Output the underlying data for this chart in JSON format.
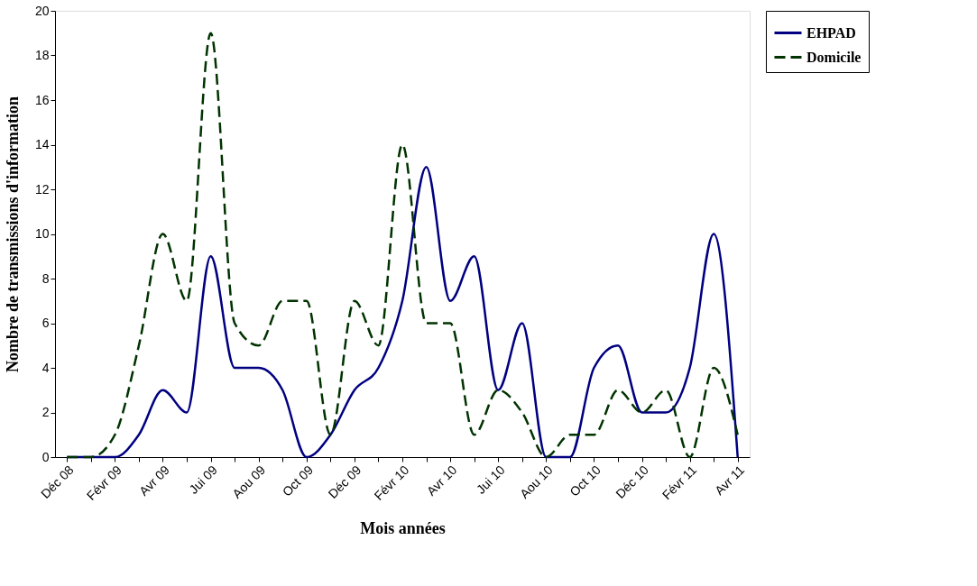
{
  "chart_data": {
    "type": "line",
    "xlabel": "Mois  années",
    "ylabel": "Nombre de transmissions d'information",
    "categories": [
      "Déc 08",
      null,
      "Févr 09",
      null,
      "Avr 09",
      null,
      "Jui 09",
      null,
      "Aou 09",
      null,
      "Oct 09",
      null,
      "Déc 09",
      null,
      "Févr 10",
      null,
      "Avr 10",
      null,
      "Jui 10",
      null,
      "Aou 10",
      null,
      "Oct 10",
      null,
      "Déc 10",
      null,
      "Févr 11",
      null,
      "Avr 11"
    ],
    "series": [
      {
        "name": "EHPAD",
        "color": "#000080",
        "line_style": "solid",
        "values": [
          0,
          0,
          0,
          1,
          3,
          2,
          9,
          4,
          4,
          3,
          0,
          1,
          3,
          4,
          7,
          13,
          7,
          9,
          3,
          6,
          0,
          0,
          4,
          5,
          2,
          2,
          4,
          10,
          0
        ]
      },
      {
        "name": "Domicile",
        "color": "#003300",
        "line_style": "dashed",
        "values": [
          0,
          0,
          1,
          5,
          10,
          7,
          19,
          6,
          5,
          7,
          7,
          1,
          7,
          5,
          14,
          6,
          6,
          1,
          3,
          2,
          0,
          1,
          1,
          3,
          2,
          3,
          0,
          4,
          1
        ]
      }
    ],
    "ylim": [
      0,
      20
    ],
    "yticks": [
      0,
      2,
      4,
      6,
      8,
      10,
      12,
      14,
      16,
      18,
      20
    ],
    "grid": false,
    "legend": "right",
    "marker": "none"
  }
}
